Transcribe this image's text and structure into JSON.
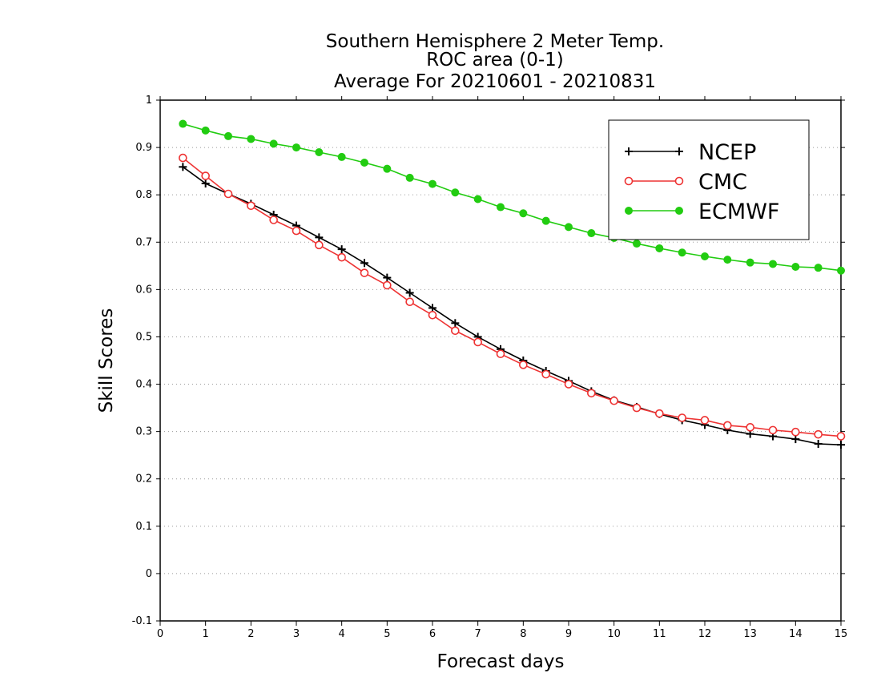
{
  "chart_data": {
    "type": "line",
    "title": [
      "Southern Hemisphere 2 Meter Temp.",
      "ROC area (0-1)",
      "Average For 20210601 - 20210831"
    ],
    "xlabel": "Forecast days",
    "ylabel": "Skill Scores",
    "xlim": [
      0,
      15
    ],
    "ylim": [
      -0.1,
      1
    ],
    "xticks": [
      0,
      1,
      2,
      3,
      4,
      5,
      6,
      7,
      8,
      9,
      10,
      11,
      12,
      13,
      14,
      15
    ],
    "xtick_labels": [
      "0",
      "1",
      "2",
      "3",
      "4",
      "5",
      "6",
      "7",
      "8",
      "9",
      "10",
      "11",
      "12",
      "13",
      "14",
      "15"
    ],
    "yticks": [
      -0.1,
      0,
      0.1,
      0.2,
      0.3,
      0.4,
      0.5,
      0.6,
      0.7,
      0.8,
      0.9,
      1
    ],
    "ytick_labels": [
      "-0.1",
      "0",
      "0.1",
      "0.2",
      "0.3",
      "0.4",
      "0.5",
      "0.6",
      "0.7",
      "0.8",
      "0.9",
      "1"
    ],
    "grid": "horizontal-dotted",
    "legend_position": "top-right",
    "x": [
      0.5,
      1,
      1.5,
      2,
      2.5,
      3,
      3.5,
      4,
      4.5,
      5,
      5.5,
      6,
      6.5,
      7,
      7.5,
      8,
      8.5,
      9,
      9.5,
      10,
      10.5,
      11,
      11.5,
      12,
      12.5,
      13,
      13.5,
      14,
      14.5,
      15
    ],
    "series": [
      {
        "name": "NCEP",
        "color": "#000000",
        "marker": "plus",
        "values": [
          0.859,
          0.824,
          0.802,
          0.781,
          0.758,
          0.735,
          0.71,
          0.685,
          0.656,
          0.625,
          0.593,
          0.561,
          0.529,
          0.5,
          0.474,
          0.45,
          0.428,
          0.407,
          0.385,
          0.366,
          0.352,
          0.337,
          0.324,
          0.314,
          0.303,
          0.295,
          0.29,
          0.284,
          0.274,
          0.272
        ]
      },
      {
        "name": "CMC",
        "color": "#ee3333",
        "marker": "open-circle",
        "values": [
          0.878,
          0.84,
          0.802,
          0.777,
          0.747,
          0.724,
          0.694,
          0.668,
          0.635,
          0.609,
          0.574,
          0.546,
          0.513,
          0.489,
          0.464,
          0.441,
          0.421,
          0.4,
          0.381,
          0.365,
          0.35,
          0.338,
          0.329,
          0.324,
          0.313,
          0.309,
          0.303,
          0.299,
          0.294,
          0.29
        ]
      },
      {
        "name": "ECMWF",
        "color": "#22cc11",
        "marker": "filled-circle",
        "values": [
          0.95,
          0.936,
          0.924,
          0.918,
          0.908,
          0.9,
          0.89,
          0.88,
          0.868,
          0.855,
          0.836,
          0.823,
          0.805,
          0.791,
          0.774,
          0.761,
          0.745,
          0.732,
          0.719,
          0.709,
          0.697,
          0.687,
          0.678,
          0.67,
          0.663,
          0.657,
          0.654,
          0.648,
          0.646,
          0.64
        ]
      }
    ]
  }
}
